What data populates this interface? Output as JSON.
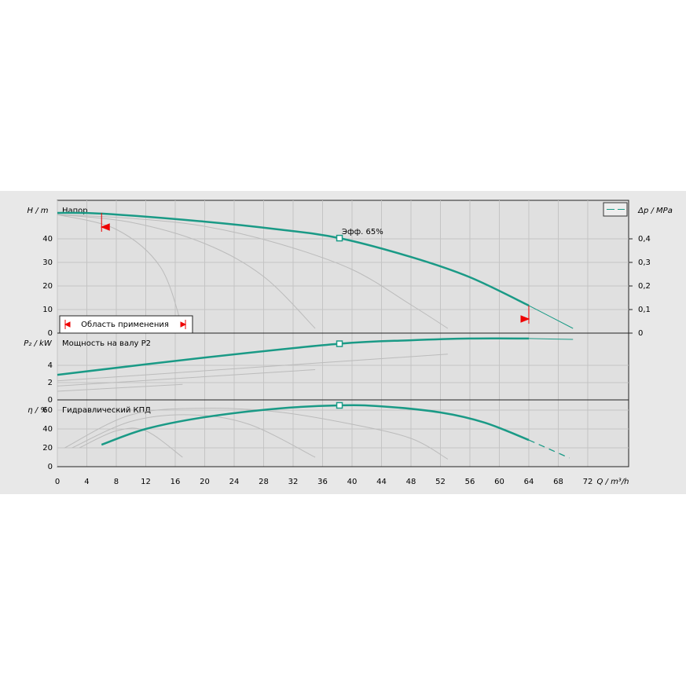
{
  "chart_data": [
    {
      "type": "line",
      "title": "Напор",
      "y_label": "H / m",
      "y2_label": "Δp / MPa",
      "ylim": [
        0,
        56.33
      ],
      "yticks": [
        0,
        10,
        20,
        30,
        40
      ],
      "y2lim": [
        0,
        0.5633
      ],
      "y2ticks": [
        0,
        {
          "value": 0.1,
          "label": "0,1"
        },
        {
          "value": 0.2,
          "label": "0,2"
        },
        {
          "value": 0.3,
          "label": "0,3"
        },
        {
          "value": 0.4,
          "label": "0,4"
        }
      ],
      "annotation": "Эфф.  65%",
      "range_label": "Область применения",
      "application_range": [
        6,
        64
      ],
      "series": [
        {
          "color": "#bbbbbb",
          "width": 1,
          "x": [
            0,
            10,
            20,
            30,
            40,
            48,
            53
          ],
          "values": [
            50.3,
            48.7,
            45.3,
            38,
            27,
            12,
            2
          ]
        },
        {
          "color": "#bbbbbb",
          "width": 1,
          "x": [
            0,
            10,
            20,
            28,
            35
          ],
          "values": [
            50.3,
            47,
            38,
            24,
            2
          ]
        },
        {
          "color": "#bbbbbb",
          "width": 1,
          "x": [
            0,
            8,
            14,
            17
          ],
          "values": [
            50.3,
            44,
            28,
            2
          ]
        },
        {
          "color": "#1a9a86",
          "width": 2.5,
          "x": [
            0,
            6,
            20,
            30,
            38.3,
            48,
            56,
            64
          ],
          "values": [
            51,
            50.7,
            47.3,
            44,
            40.3,
            32.3,
            23.7,
            11.7
          ],
          "operating_point": 4
        },
        {
          "color": "#1a9a86",
          "width": 1,
          "x": [
            64,
            70
          ],
          "values": [
            11.7,
            2
          ]
        }
      ]
    },
    {
      "type": "line",
      "title": "Мощность на валу P2",
      "y_label": "P₂ / kW",
      "ylim": [
        0,
        7.73
      ],
      "yticks": [
        0,
        2,
        4
      ],
      "series": [
        {
          "color": "#bbbbbb",
          "width": 1,
          "x": [
            0,
            53
          ],
          "values": [
            2.2,
            5.3
          ]
        },
        {
          "color": "#bbbbbb",
          "width": 1,
          "x": [
            0,
            35
          ],
          "values": [
            1.6,
            3.5
          ]
        },
        {
          "color": "#bbbbbb",
          "width": 1,
          "x": [
            0,
            17
          ],
          "values": [
            1,
            1.8
          ]
        },
        {
          "color": "#1a9a86",
          "width": 2.5,
          "x": [
            0,
            20,
            38.3,
            48,
            56,
            64
          ],
          "values": [
            2.9,
            4.9,
            6.5,
            6.9,
            7.1,
            7.1
          ],
          "operating_point": 2
        },
        {
          "color": "#1a9a86",
          "width": 1,
          "x": [
            64,
            70
          ],
          "values": [
            7.1,
            7
          ]
        }
      ]
    },
    {
      "type": "line",
      "title": "Гидравлический КПД",
      "y_label": "η / %",
      "x_label": "Q / m³/h",
      "ylim": [
        0,
        70.83
      ],
      "yticks": [
        0,
        20,
        40,
        60
      ],
      "xlim": [
        0,
        77.55
      ],
      "xticks": [
        0,
        4,
        8,
        12,
        16,
        20,
        24,
        28,
        32,
        36,
        40,
        44,
        48,
        52,
        56,
        60,
        64,
        68,
        72
      ],
      "series": [
        {
          "color": "#bbbbbb",
          "width": 1,
          "x": [
            1,
            10,
            20,
            30,
            40,
            48,
            53
          ],
          "values": [
            20,
            55,
            62,
            58,
            45,
            30,
            8
          ]
        },
        {
          "color": "#bbbbbb",
          "width": 1,
          "x": [
            2,
            10,
            18,
            26,
            35
          ],
          "values": [
            20,
            48,
            55,
            45,
            10
          ]
        },
        {
          "color": "#bbbbbb",
          "width": 1,
          "x": [
            3,
            8,
            12,
            17
          ],
          "values": [
            20,
            38,
            38,
            10
          ]
        },
        {
          "color": "#1a9a86",
          "width": 2.5,
          "x": [
            6,
            12,
            20,
            30,
            38.3,
            44,
            52,
            58,
            64
          ],
          "values": [
            23.3,
            40,
            52.5,
            61.7,
            65,
            64,
            57.5,
            46.7,
            28.3
          ],
          "operating_point": 4
        },
        {
          "color": "#1a9a86",
          "width": 1.3,
          "dash": "8 6",
          "x": [
            64,
            69.5
          ],
          "values": [
            28.3,
            9.2
          ]
        }
      ]
    }
  ]
}
